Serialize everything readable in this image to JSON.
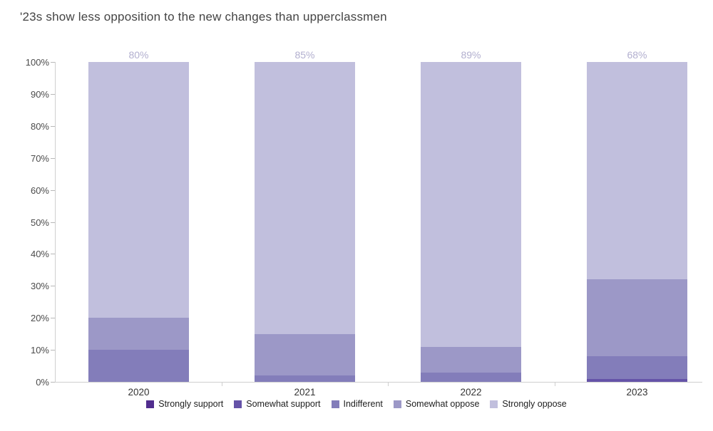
{
  "chart_data": {
    "type": "bar",
    "subtype": "stacked-percentage-column",
    "title": "'23s show less opposition to the new changes than upperclassmen",
    "categories": [
      "2020",
      "2021",
      "2022",
      "2023"
    ],
    "series": [
      {
        "name": "Strongly support",
        "color": "#512d8e",
        "label_color": "#55409a",
        "values": [
          0,
          0,
          0,
          0
        ]
      },
      {
        "name": "Somewhat support",
        "color": "#6553a8",
        "label_color": "#5a4899",
        "values": [
          0,
          0,
          0,
          1
        ]
      },
      {
        "name": "Indifferent",
        "color": "#837dba",
        "label_color": "#a19dbe",
        "values": [
          10,
          2,
          3,
          7
        ]
      },
      {
        "name": "Somewhat oppose",
        "color": "#9c98c7",
        "label_color": "#a6a3c2",
        "values": [
          10,
          13,
          8,
          24
        ]
      },
      {
        "name": "Strongly oppose",
        "color": "#c1bfdd",
        "label_color": "#b2afcf",
        "values": [
          80,
          85,
          89,
          68
        ]
      }
    ],
    "value_label_suffix": "%",
    "y_ticks": [
      "0%",
      "10%",
      "20%",
      "30%",
      "40%",
      "50%",
      "60%",
      "70%",
      "80%",
      "90%",
      "100%"
    ],
    "ylim": [
      0,
      100
    ],
    "grid": false,
    "legend_position": "bottom",
    "axis_color": "#cfcfcf"
  }
}
